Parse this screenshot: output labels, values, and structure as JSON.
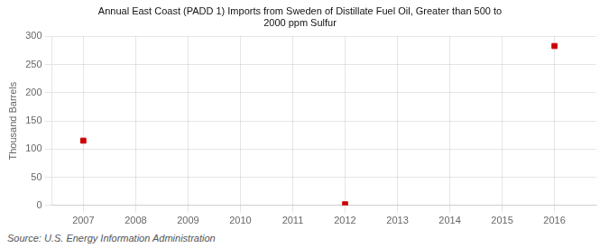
{
  "chart_data": {
    "type": "scatter",
    "title": "Annual East Coast (PADD 1) Imports from Sweden of Distillate Fuel Oil, Greater than 500 to\n2000 ppm Sulfur",
    "ylabel": "Thousand Barrels",
    "source": "Source: U.S. Energy Information Administration",
    "x": [
      2007,
      2012,
      2016
    ],
    "values": [
      115,
      2,
      283
    ],
    "color": "#cc0000",
    "marker": "square",
    "xlim": [
      2006.4,
      2016.8
    ],
    "ylim": [
      0,
      300
    ],
    "xticks": [
      2007,
      2008,
      2009,
      2010,
      2011,
      2012,
      2013,
      2014,
      2015,
      2016
    ],
    "yticks": [
      0,
      50,
      100,
      150,
      200,
      250,
      300
    ],
    "grid": true
  }
}
